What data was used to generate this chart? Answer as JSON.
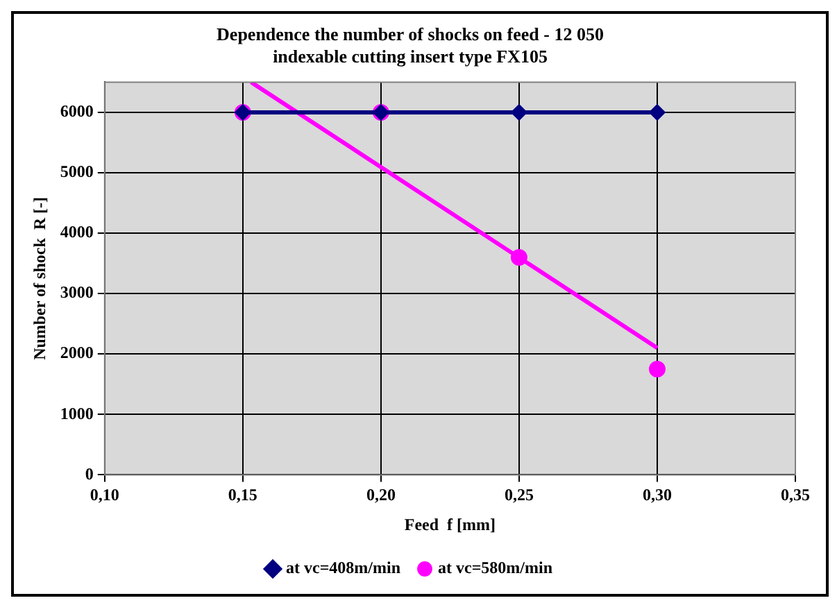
{
  "chart_data": {
    "type": "line",
    "title": "Dependence the number of shocks on feed - 12 050\nindexable cutting insert type FX105",
    "xlabel": "Feed  f [mm]",
    "ylabel": "Number of shock  R [-]",
    "x": [
      0.15,
      0.2,
      0.25,
      0.3
    ],
    "series": [
      {
        "name": "at vc=408m/min",
        "color": "#000080",
        "marker": "diamond",
        "values": [
          6000,
          6000,
          6000,
          6000
        ]
      },
      {
        "name": "at vc=580m/min",
        "color": "#ff00ff",
        "type": "scatter",
        "marker": "circle",
        "x": [
          0.15,
          0.2,
          0.25,
          0.3
        ],
        "values": [
          6000,
          6000,
          3600,
          1750
        ]
      },
      {
        "color": "#ff00ff",
        "type": "line",
        "marker": "none",
        "x": [
          0.153,
          0.3
        ],
        "values": [
          6500,
          2100
        ]
      }
    ],
    "xlim": [
      0.1,
      0.35
    ],
    "xticks": [
      {
        "value": 0.1,
        "label": "0,10"
      },
      {
        "value": 0.15,
        "label": "0,15"
      },
      {
        "value": 0.2,
        "label": "0,20"
      },
      {
        "value": 0.25,
        "label": "0,25"
      },
      {
        "value": 0.3,
        "label": "0,30"
      },
      {
        "value": 0.35,
        "label": "0,35"
      }
    ],
    "ylim": [
      0,
      6500
    ],
    "yticks": [
      0,
      1000,
      2000,
      3000,
      4000,
      5000,
      6000
    ],
    "grid": true,
    "legend": "bottom"
  }
}
